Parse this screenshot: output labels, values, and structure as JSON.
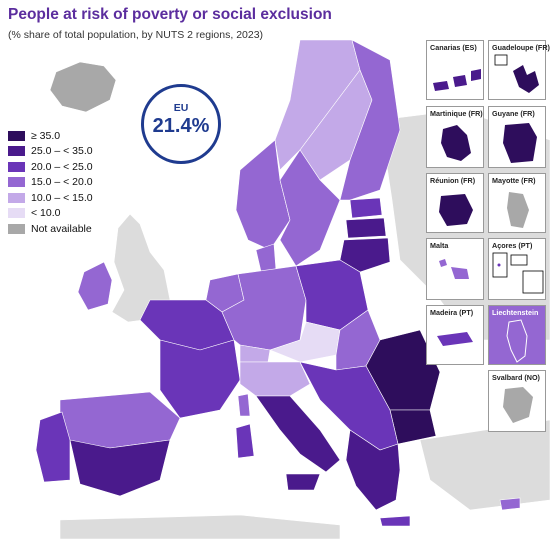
{
  "title": "People at risk of poverty or social exclusion",
  "subtitle": "(% share of total population, by NUTS 2 regions, 2023)",
  "eu_badge": {
    "label": "EU",
    "value": "21.4%"
  },
  "legend": [
    {
      "label": "≥ 35.0",
      "color": "#2e0d5c"
    },
    {
      "label": "25.0 – < 35.0",
      "color": "#4a1a8c"
    },
    {
      "label": "20.0 – < 25.0",
      "color": "#6a35b8"
    },
    {
      "label": "15.0 – < 20.0",
      "color": "#9467d2"
    },
    {
      "label": "10.0 – < 15.0",
      "color": "#c3a9e8"
    },
    {
      "label": "< 10.0",
      "color": "#e6dcf5"
    },
    {
      "label": "Not available",
      "color": "#a8a8a8"
    }
  ],
  "insets": {
    "canarias": "Canarias (ES)",
    "guadeloupe": "Guadeloupe (FR)",
    "martinique": "Martinique (FR)",
    "guyane": "Guyane (FR)",
    "reunion": "Réunion (FR)",
    "mayotte": "Mayotte (FR)",
    "malta": "Malta",
    "acores": "Açores (PT)",
    "madeira": "Madeira (PT)",
    "liechtenstein": "Liechtenstein",
    "svalbard": "Svalbard (NO)"
  }
}
